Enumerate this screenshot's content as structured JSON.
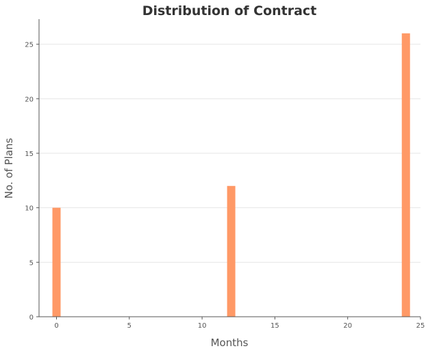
{
  "chart_data": {
    "type": "bar",
    "title": "Distribution of Contract",
    "xlabel": "Months",
    "ylabel": "No. of Plans",
    "x": [
      0,
      12,
      24
    ],
    "values": [
      10,
      12,
      26
    ],
    "xlim": [
      -1.2,
      25
    ],
    "ylim": [
      0,
      27.3
    ],
    "xticks": [
      0,
      5,
      10,
      15,
      20,
      25
    ],
    "yticks": [
      0,
      5,
      10,
      15,
      20,
      25
    ],
    "grid": "horizontal",
    "bar_color": "#ff9966"
  }
}
